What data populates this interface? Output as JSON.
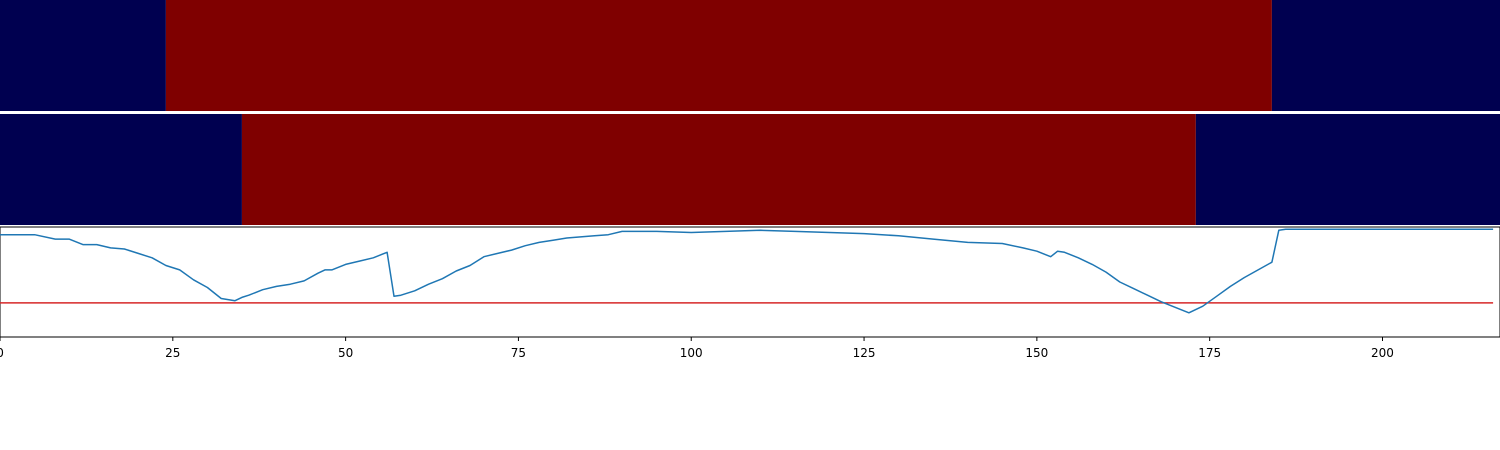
{
  "colors": {
    "low": "#000050",
    "high": "#7f0000",
    "line": "#1f77b4",
    "threshold": "#d62728",
    "axis": "#000000",
    "background": "#ffffff"
  },
  "chart_data": [
    {
      "type": "heatmap",
      "panel": "top",
      "xlim": [
        0,
        217
      ],
      "segments": [
        {
          "start": 0,
          "end": 24,
          "level": "low"
        },
        {
          "start": 24,
          "end": 184,
          "level": "high"
        },
        {
          "start": 184,
          "end": 217,
          "level": "low"
        }
      ]
    },
    {
      "type": "heatmap",
      "panel": "middle",
      "xlim": [
        0,
        217
      ],
      "segments": [
        {
          "start": 0,
          "end": 35,
          "level": "low"
        },
        {
          "start": 35,
          "end": 173,
          "level": "high"
        },
        {
          "start": 173,
          "end": 217,
          "level": "low"
        }
      ]
    },
    {
      "type": "line",
      "panel": "bottom",
      "xlim": [
        0,
        217
      ],
      "ylim": [
        0,
        1
      ],
      "grid": false,
      "xticks": [
        0,
        25,
        50,
        75,
        100,
        125,
        150,
        175,
        200
      ],
      "xtick_labels": [
        "0",
        "25",
        "50",
        "75",
        "100",
        "125",
        "150",
        "175",
        "200"
      ],
      "threshold": 0.31,
      "series": [
        {
          "x": [
            0,
            5,
            8,
            10,
            12,
            14,
            16,
            18,
            20,
            22,
            24,
            26,
            28,
            30,
            32,
            34,
            35,
            36,
            38,
            40,
            42,
            44,
            46,
            47,
            48,
            50,
            52,
            54,
            56,
            57,
            58,
            60,
            62,
            64,
            66,
            68,
            70,
            72,
            74,
            76,
            78,
            80,
            82,
            84,
            86,
            88,
            90,
            95,
            100,
            105,
            110,
            115,
            120,
            125,
            130,
            135,
            140,
            145,
            148,
            150,
            152,
            153,
            154,
            156,
            158,
            160,
            162,
            164,
            166,
            168,
            170,
            172,
            174,
            176,
            178,
            180,
            182,
            184,
            185,
            186,
            190,
            200,
            210,
            216
          ],
          "y": [
            0.93,
            0.93,
            0.89,
            0.89,
            0.84,
            0.84,
            0.81,
            0.8,
            0.76,
            0.72,
            0.65,
            0.61,
            0.52,
            0.45,
            0.35,
            0.33,
            0.36,
            0.38,
            0.43,
            0.46,
            0.48,
            0.51,
            0.58,
            0.61,
            0.61,
            0.66,
            0.69,
            0.72,
            0.77,
            0.37,
            0.38,
            0.42,
            0.48,
            0.53,
            0.6,
            0.65,
            0.73,
            0.76,
            0.79,
            0.83,
            0.86,
            0.88,
            0.9,
            0.91,
            0.92,
            0.93,
            0.96,
            0.96,
            0.95,
            0.96,
            0.97,
            0.96,
            0.95,
            0.94,
            0.92,
            0.89,
            0.86,
            0.85,
            0.81,
            0.78,
            0.73,
            0.78,
            0.77,
            0.72,
            0.66,
            0.59,
            0.5,
            0.44,
            0.38,
            0.32,
            0.27,
            0.22,
            0.28,
            0.37,
            0.46,
            0.54,
            0.61,
            0.68,
            0.97,
            0.98,
            0.98,
            0.98,
            0.98,
            0.98
          ]
        }
      ]
    }
  ]
}
